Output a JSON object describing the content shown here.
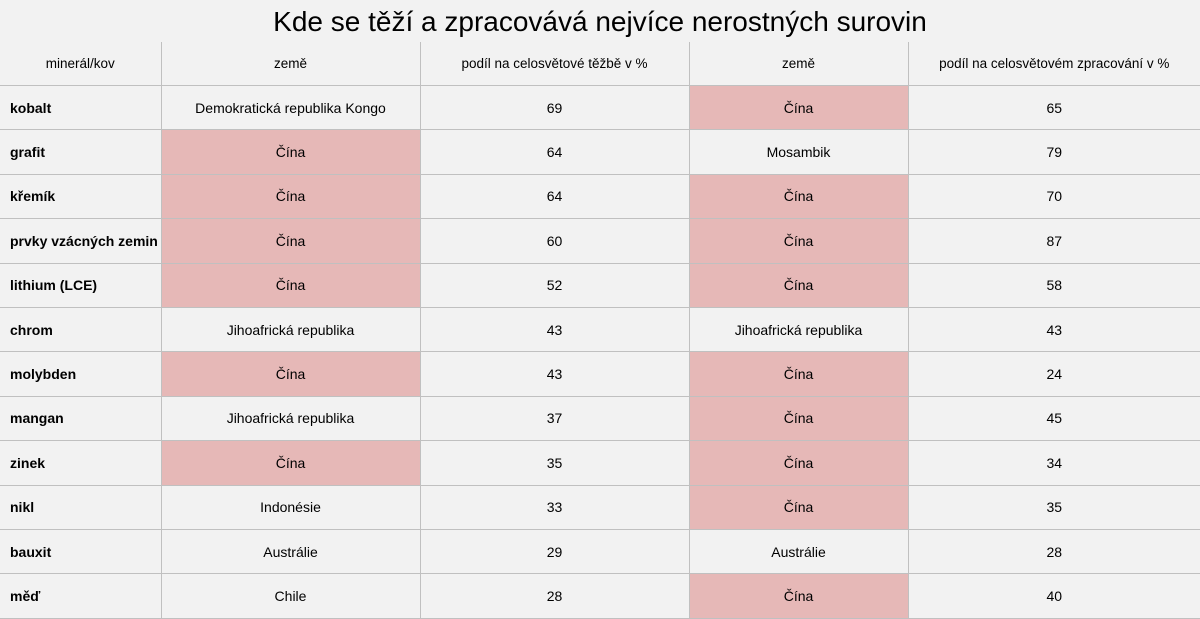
{
  "title": "Kde se těží a zpracovává nejvíce nerostných surovin",
  "table": {
    "header": [
      "minerál/kov",
      "země",
      "podíl na celosvětové těžbě v %",
      "země",
      "podíl na celosvětovém zpracování v %"
    ],
    "rows": [
      [
        "kobalt",
        "Demokratická republika Kongo",
        69,
        "Čína",
        65
      ],
      [
        "grafit",
        "Čína",
        64,
        "Mosambik",
        79
      ],
      [
        "křemík",
        "Čína",
        64,
        "Čína",
        70
      ],
      [
        "prvky vzácných zemin",
        "Čína",
        60,
        "Čína",
        87
      ],
      [
        "lithium (LCE)",
        "Čína",
        52,
        "Čína",
        58
      ],
      [
        "chrom",
        "Jihoafrická republika",
        43,
        "Jihoafrická republika",
        43
      ],
      [
        "molybden",
        "Čína",
        43,
        "Čína",
        24
      ],
      [
        "mangan",
        "Jihoafrická republika",
        37,
        "Čína",
        45
      ],
      [
        "zinek",
        "Čína",
        35,
        "Čína",
        34
      ],
      [
        "nikl",
        "Indonésie",
        33,
        "Čína",
        35
      ],
      [
        "bauxit",
        "Austrálie",
        29,
        "Austrálie",
        28
      ],
      [
        "měď",
        "Chile",
        28,
        "Čína",
        40
      ]
    ],
    "highlight_color": "#e6b8b7"
  }
}
